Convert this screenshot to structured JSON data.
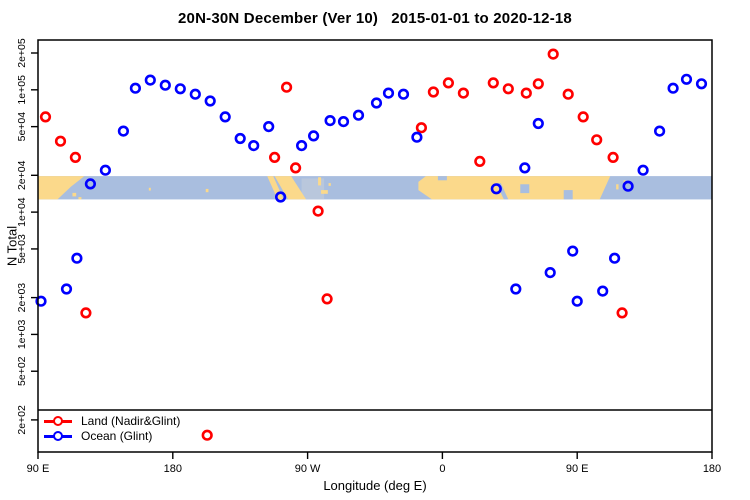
{
  "title": "20N-30N December (Ver 10)   2015-01-01 to 2020-12-18",
  "colors": {
    "land_series": "#ff0000",
    "ocean_series": "#0000ff",
    "map_ocean": "#a9bedf",
    "map_shallow": "#b9c7dc",
    "map_land": "#fbd98b",
    "axis": "#000000"
  },
  "axes": {
    "xlabel": "Longitude (deg E)",
    "ylabel": "N Total",
    "x_range": [
      90,
      540
    ],
    "x_ticks": [
      {
        "lon": 90,
        "label": "90 E"
      },
      {
        "lon": 180,
        "label": "180"
      },
      {
        "lon": 270,
        "label": "90 W"
      },
      {
        "lon": 360,
        "label": "0"
      },
      {
        "lon": 450,
        "label": "90 E"
      },
      {
        "lon": 540,
        "label": "180"
      }
    ],
    "y_scale": "log",
    "y_ticks": [
      {
        "value": 200000,
        "label": "2e+05"
      },
      {
        "value": 100000,
        "label": "1e+05"
      },
      {
        "value": 50000,
        "label": "5e+04"
      },
      {
        "value": 20000,
        "label": "2e+04"
      },
      {
        "value": 10000,
        "label": "1e+04"
      },
      {
        "value": 5000,
        "label": "5e+03"
      },
      {
        "value": 2000,
        "label": "2e+03"
      },
      {
        "value": 1000,
        "label": "1e+03"
      },
      {
        "value": 500,
        "label": "5e+02"
      },
      {
        "value": 200,
        "label": "2e+02"
      }
    ]
  },
  "legend": {
    "items": [
      {
        "label": "Land (Nadir&Glint)",
        "color": "#ff0000"
      },
      {
        "label": "Ocean (Glint)",
        "color": "#0000ff"
      }
    ]
  },
  "chart_data": {
    "type": "scatter",
    "title": "20N-30N December (Ver 10)   2015-01-01 to 2020-12-18",
    "xlabel": "Longitude (deg E)",
    "ylabel": "N Total",
    "x_range_deg_east": [
      90,
      540
    ],
    "y_log_range": [
      110,
      255000
    ],
    "grid": false,
    "legend_position": "bottom-left",
    "series": [
      {
        "name": "Land (Nadir&Glint)",
        "color": "#ff0000",
        "marker": "open-circle",
        "points": [
          [
            95,
            60000
          ],
          [
            105,
            38000
          ],
          [
            115,
            28000
          ],
          [
            122,
            1500
          ],
          [
            203,
            150
          ],
          [
            248,
            28000
          ],
          [
            256,
            105000
          ],
          [
            262,
            23000
          ],
          [
            277,
            10200
          ],
          [
            283,
            1950
          ],
          [
            346,
            49000
          ],
          [
            354,
            96000
          ],
          [
            364,
            114000
          ],
          [
            374,
            94000
          ],
          [
            385,
            26000
          ],
          [
            394,
            114000
          ],
          [
            404,
            102000
          ],
          [
            416,
            94000
          ],
          [
            424,
            112000
          ],
          [
            434,
            196000
          ],
          [
            444,
            92000
          ],
          [
            454,
            60000
          ],
          [
            463,
            39000
          ],
          [
            474,
            28000
          ],
          [
            480,
            1500
          ]
        ]
      },
      {
        "name": "Ocean (Glint)",
        "color": "#0000ff",
        "marker": "open-circle",
        "points": [
          [
            92,
            1870
          ],
          [
            109,
            2350
          ],
          [
            116,
            4200
          ],
          [
            125,
            17000
          ],
          [
            135,
            22000
          ],
          [
            147,
            46000
          ],
          [
            155,
            103000
          ],
          [
            165,
            120000
          ],
          [
            175,
            109000
          ],
          [
            185,
            102000
          ],
          [
            195,
            92000
          ],
          [
            205,
            81000
          ],
          [
            215,
            60000
          ],
          [
            225,
            40000
          ],
          [
            234,
            35000
          ],
          [
            244,
            50000
          ],
          [
            252,
            13300
          ],
          [
            266,
            35000
          ],
          [
            274,
            42000
          ],
          [
            285,
            56000
          ],
          [
            294,
            55000
          ],
          [
            304,
            62000
          ],
          [
            316,
            78000
          ],
          [
            324,
            94000
          ],
          [
            334,
            92000
          ],
          [
            343,
            41000
          ],
          [
            396,
            15500
          ],
          [
            409,
            2350
          ],
          [
            415,
            23000
          ],
          [
            424,
            53000
          ],
          [
            432,
            3200
          ],
          [
            447,
            4800
          ],
          [
            450,
            1870
          ],
          [
            467,
            2260
          ],
          [
            475,
            4200
          ],
          [
            484,
            16300
          ],
          [
            494,
            22000
          ],
          [
            505,
            46000
          ],
          [
            514,
            103000
          ],
          [
            523,
            122000
          ],
          [
            533,
            112000
          ]
        ]
      }
    ],
    "map_band": {
      "description": "world coastline strip 20N-30N drawn across plot",
      "value_top": 19700,
      "value_bottom": 12700,
      "shallow_patches": [
        {
          "lon": 266,
          "t": 0.1,
          "w": 15,
          "h": 0.9
        }
      ],
      "land_polygons": [
        {
          "name": "asia-east",
          "pts": [
            [
              90,
              0
            ],
            [
              121,
              0
            ],
            [
              112,
              0.45
            ],
            [
              103,
              1
            ],
            [
              90,
              1
            ]
          ]
        },
        {
          "name": "baja-california",
          "pts": [
            [
              243,
              0
            ],
            [
              247,
              0
            ],
            [
              254,
              1
            ],
            [
              250,
              1
            ]
          ]
        },
        {
          "name": "mexico",
          "pts": [
            [
              248,
              0
            ],
            [
              259,
              0
            ],
            [
              269,
              1
            ],
            [
              257,
              1
            ]
          ]
        },
        {
          "name": "africa-arabia-asia",
          "pts": [
            [
              344,
              0.25
            ],
            [
              349,
              0
            ],
            [
              472,
              0
            ],
            [
              465,
              1
            ],
            [
              353,
              1
            ],
            [
              344,
              0.6
            ]
          ]
        }
      ],
      "islands": [
        {
          "lon": 113,
          "t": 0.72,
          "w": 2.5,
          "h": 0.15
        },
        {
          "lon": 117,
          "t": 0.9,
          "w": 2.0,
          "h": 0.1
        },
        {
          "lon": 164,
          "t": 0.5,
          "w": 1.3,
          "h": 0.12
        },
        {
          "lon": 202,
          "t": 0.55,
          "w": 1.8,
          "h": 0.14
        },
        {
          "lon": 277,
          "t": 0.05,
          "w": 2.0,
          "h": 0.35
        },
        {
          "lon": 279,
          "t": 0.6,
          "w": 4.5,
          "h": 0.16
        },
        {
          "lon": 284,
          "t": 0.3,
          "w": 1.5,
          "h": 0.12
        },
        {
          "lon": 476,
          "t": 0.35,
          "w": 1.6,
          "h": 0.22
        },
        {
          "lon": 481,
          "t": 0.18,
          "w": 1.2,
          "h": 0.12
        }
      ],
      "water_notches": [
        {
          "name": "mediterranean",
          "kind": "rect",
          "lon": 357,
          "t": 0,
          "w": 6,
          "h": 0.18
        },
        {
          "name": "red-sea",
          "kind": "poly",
          "pts": [
            [
              396,
              0.3
            ],
            [
              399,
              0.3
            ],
            [
              404,
              1
            ],
            [
              401,
              1
            ]
          ]
        },
        {
          "name": "persian-gulf",
          "kind": "rect",
          "lon": 412,
          "t": 0.35,
          "w": 6,
          "h": 0.38
        },
        {
          "name": "bay-of-bengal",
          "kind": "rect",
          "lon": 441,
          "t": 0.6,
          "w": 6,
          "h": 0.4
        }
      ]
    }
  }
}
